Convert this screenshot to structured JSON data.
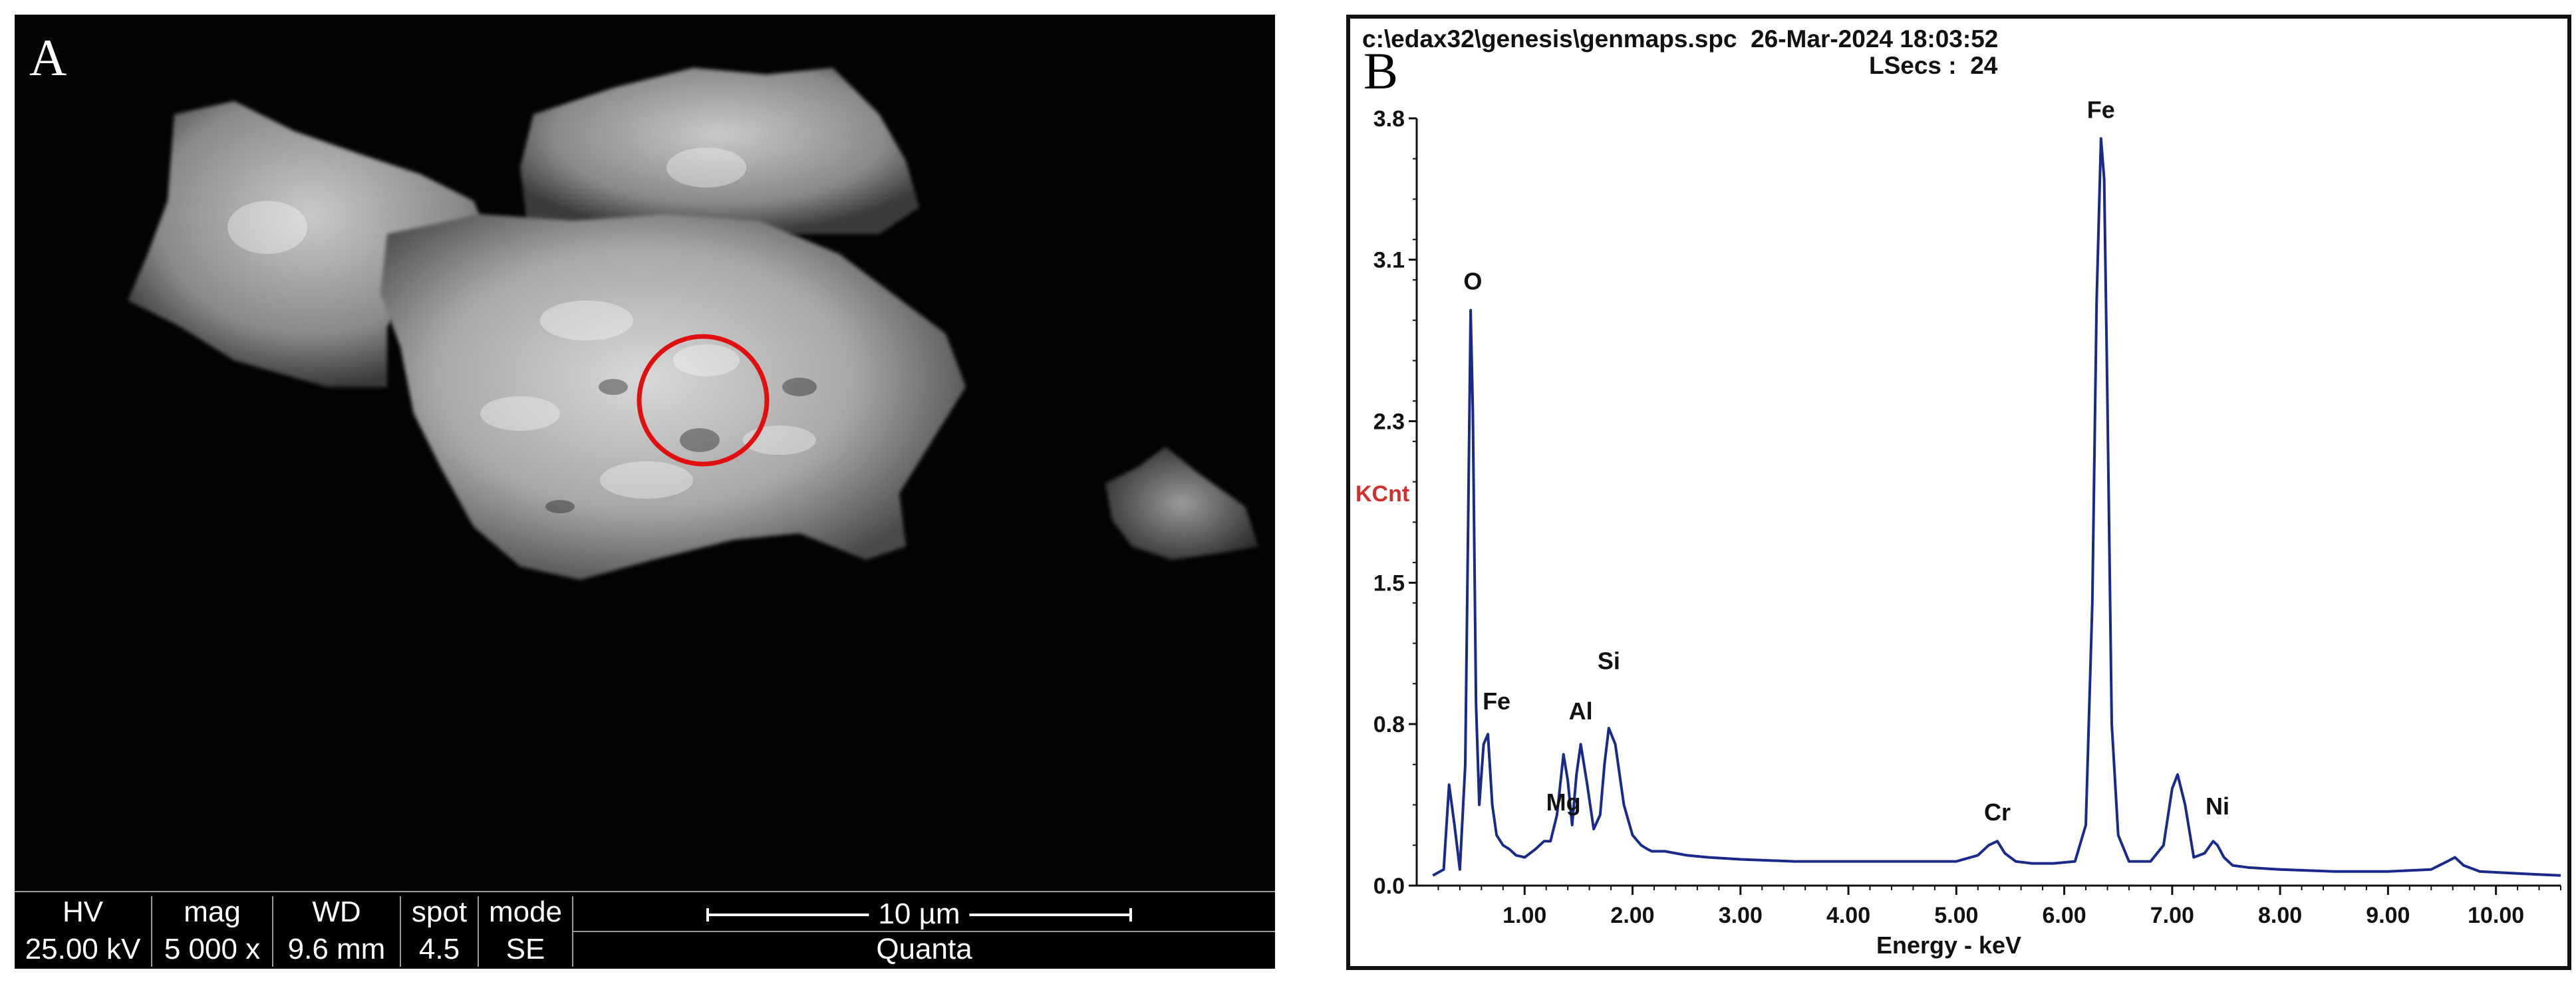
{
  "panels": {
    "a_letter": "A",
    "b_letter": "B"
  },
  "sem": {
    "info_bar": [
      {
        "label": "HV",
        "value": "25.00 kV"
      },
      {
        "label": "mag",
        "value": "5 000 x"
      },
      {
        "label": "WD",
        "value": "9.6 mm"
      },
      {
        "label": "spot",
        "value": "4.5"
      },
      {
        "label": "mode",
        "value": "SE"
      }
    ],
    "scale_bar": "10 µm",
    "instrument": "Quanta",
    "marker_color": "#e01010"
  },
  "spectrum": {
    "file": "c:\\edax32\\genesis\\genmaps.spc",
    "datetime": "26-Mar-2024 18:03:52",
    "lsecs_label": "LSecs :",
    "lsecs_value": "24"
  },
  "chart_data": {
    "type": "line",
    "title": "",
    "xlabel": "Energy - keV",
    "ylabel": "KCnt",
    "xlim": [
      0,
      10.6
    ],
    "ylim": [
      0,
      3.8
    ],
    "x_ticks": [
      "1.00",
      "2.00",
      "3.00",
      "4.00",
      "5.00",
      "6.00",
      "7.00",
      "8.00",
      "9.00",
      "10.00"
    ],
    "y_ticks": [
      "0.0",
      "0.8",
      "1.5",
      "2.3",
      "3.1",
      "3.8"
    ],
    "line_color": "#1a2a8a",
    "ylabel_color": "#d03030",
    "series": [
      {
        "x": [
          0.15,
          0.25,
          0.3,
          0.35,
          0.4,
          0.45,
          0.48,
          0.5,
          0.52,
          0.55,
          0.58,
          0.62,
          0.66,
          0.7,
          0.74,
          0.8,
          0.86,
          0.92,
          1.0,
          1.1,
          1.18,
          1.24,
          1.3,
          1.36,
          1.4,
          1.44,
          1.48,
          1.52,
          1.58,
          1.64,
          1.7,
          1.74,
          1.78,
          1.84,
          1.92,
          2.0,
          2.08,
          2.14,
          2.18,
          2.24,
          2.3,
          2.4,
          2.5,
          2.7,
          3.0,
          3.5,
          4.0,
          4.5,
          5.0,
          5.2,
          5.3,
          5.38,
          5.45,
          5.55,
          5.7,
          5.9,
          6.1,
          6.2,
          6.26,
          6.3,
          6.34,
          6.37,
          6.4,
          6.44,
          6.5,
          6.6,
          6.8,
          6.92,
          7.0,
          7.05,
          7.12,
          7.2,
          7.3,
          7.38,
          7.42,
          7.48,
          7.56,
          7.7,
          8.0,
          8.5,
          9.0,
          9.4,
          9.55,
          9.62,
          9.7,
          9.85,
          10.2,
          10.6
        ],
        "y": [
          0.05,
          0.08,
          0.5,
          0.3,
          0.08,
          0.6,
          1.95,
          2.85,
          2.35,
          0.9,
          0.4,
          0.7,
          0.75,
          0.4,
          0.25,
          0.2,
          0.18,
          0.15,
          0.14,
          0.18,
          0.22,
          0.22,
          0.35,
          0.65,
          0.52,
          0.3,
          0.55,
          0.7,
          0.5,
          0.28,
          0.35,
          0.6,
          0.78,
          0.7,
          0.4,
          0.25,
          0.2,
          0.18,
          0.17,
          0.17,
          0.17,
          0.16,
          0.15,
          0.14,
          0.13,
          0.12,
          0.12,
          0.12,
          0.12,
          0.15,
          0.2,
          0.22,
          0.16,
          0.12,
          0.11,
          0.11,
          0.12,
          0.3,
          1.4,
          2.9,
          3.7,
          3.5,
          2.4,
          0.8,
          0.25,
          0.12,
          0.12,
          0.2,
          0.48,
          0.55,
          0.4,
          0.14,
          0.16,
          0.22,
          0.2,
          0.14,
          0.1,
          0.09,
          0.08,
          0.07,
          0.07,
          0.08,
          0.12,
          0.14,
          0.1,
          0.07,
          0.06,
          0.05
        ]
      }
    ],
    "annotations": [
      {
        "text": "O",
        "x": 0.52,
        "y": 2.88
      },
      {
        "text": "Fe",
        "x": 0.74,
        "y": 0.8
      },
      {
        "text": "Mg",
        "x": 1.36,
        "y": 0.3
      },
      {
        "text": "Al",
        "x": 1.52,
        "y": 0.75
      },
      {
        "text": "Si",
        "x": 1.78,
        "y": 1.0
      },
      {
        "text": "Cr",
        "x": 5.38,
        "y": 0.25
      },
      {
        "text": "Fe",
        "x": 6.34,
        "y": 3.73
      },
      {
        "text": "Ni",
        "x": 7.42,
        "y": 0.28
      }
    ]
  }
}
